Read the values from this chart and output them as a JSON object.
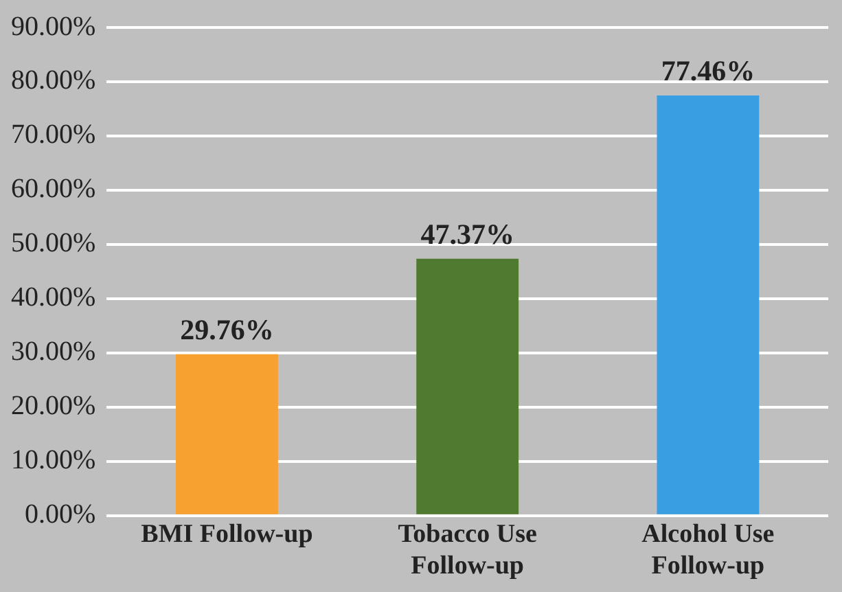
{
  "chart_data": {
    "type": "bar",
    "categories": [
      "BMI Follow-up",
      "Tobacco Use Follow-up",
      "Alcohol Use Follow-up"
    ],
    "values": [
      29.76,
      47.37,
      77.46
    ],
    "colors": [
      "#f7a130",
      "#4f7a2f",
      "#3a9fe2"
    ],
    "value_labels": [
      "29.76%",
      "47.37%",
      "77.46%"
    ],
    "ylim": [
      0,
      90
    ],
    "yticks": [
      {
        "value": 0,
        "label": "0.00%"
      },
      {
        "value": 10,
        "label": "10.00%"
      },
      {
        "value": 20,
        "label": "20.00%"
      },
      {
        "value": 30,
        "label": "30.00%"
      },
      {
        "value": 40,
        "label": "40.00%"
      },
      {
        "value": 50,
        "label": "50.00%"
      },
      {
        "value": 60,
        "label": "60.00%"
      },
      {
        "value": 70,
        "label": "70.00%"
      },
      {
        "value": 80,
        "label": "80.00%"
      },
      {
        "value": 90,
        "label": "90.00%"
      }
    ],
    "grid": "y"
  }
}
